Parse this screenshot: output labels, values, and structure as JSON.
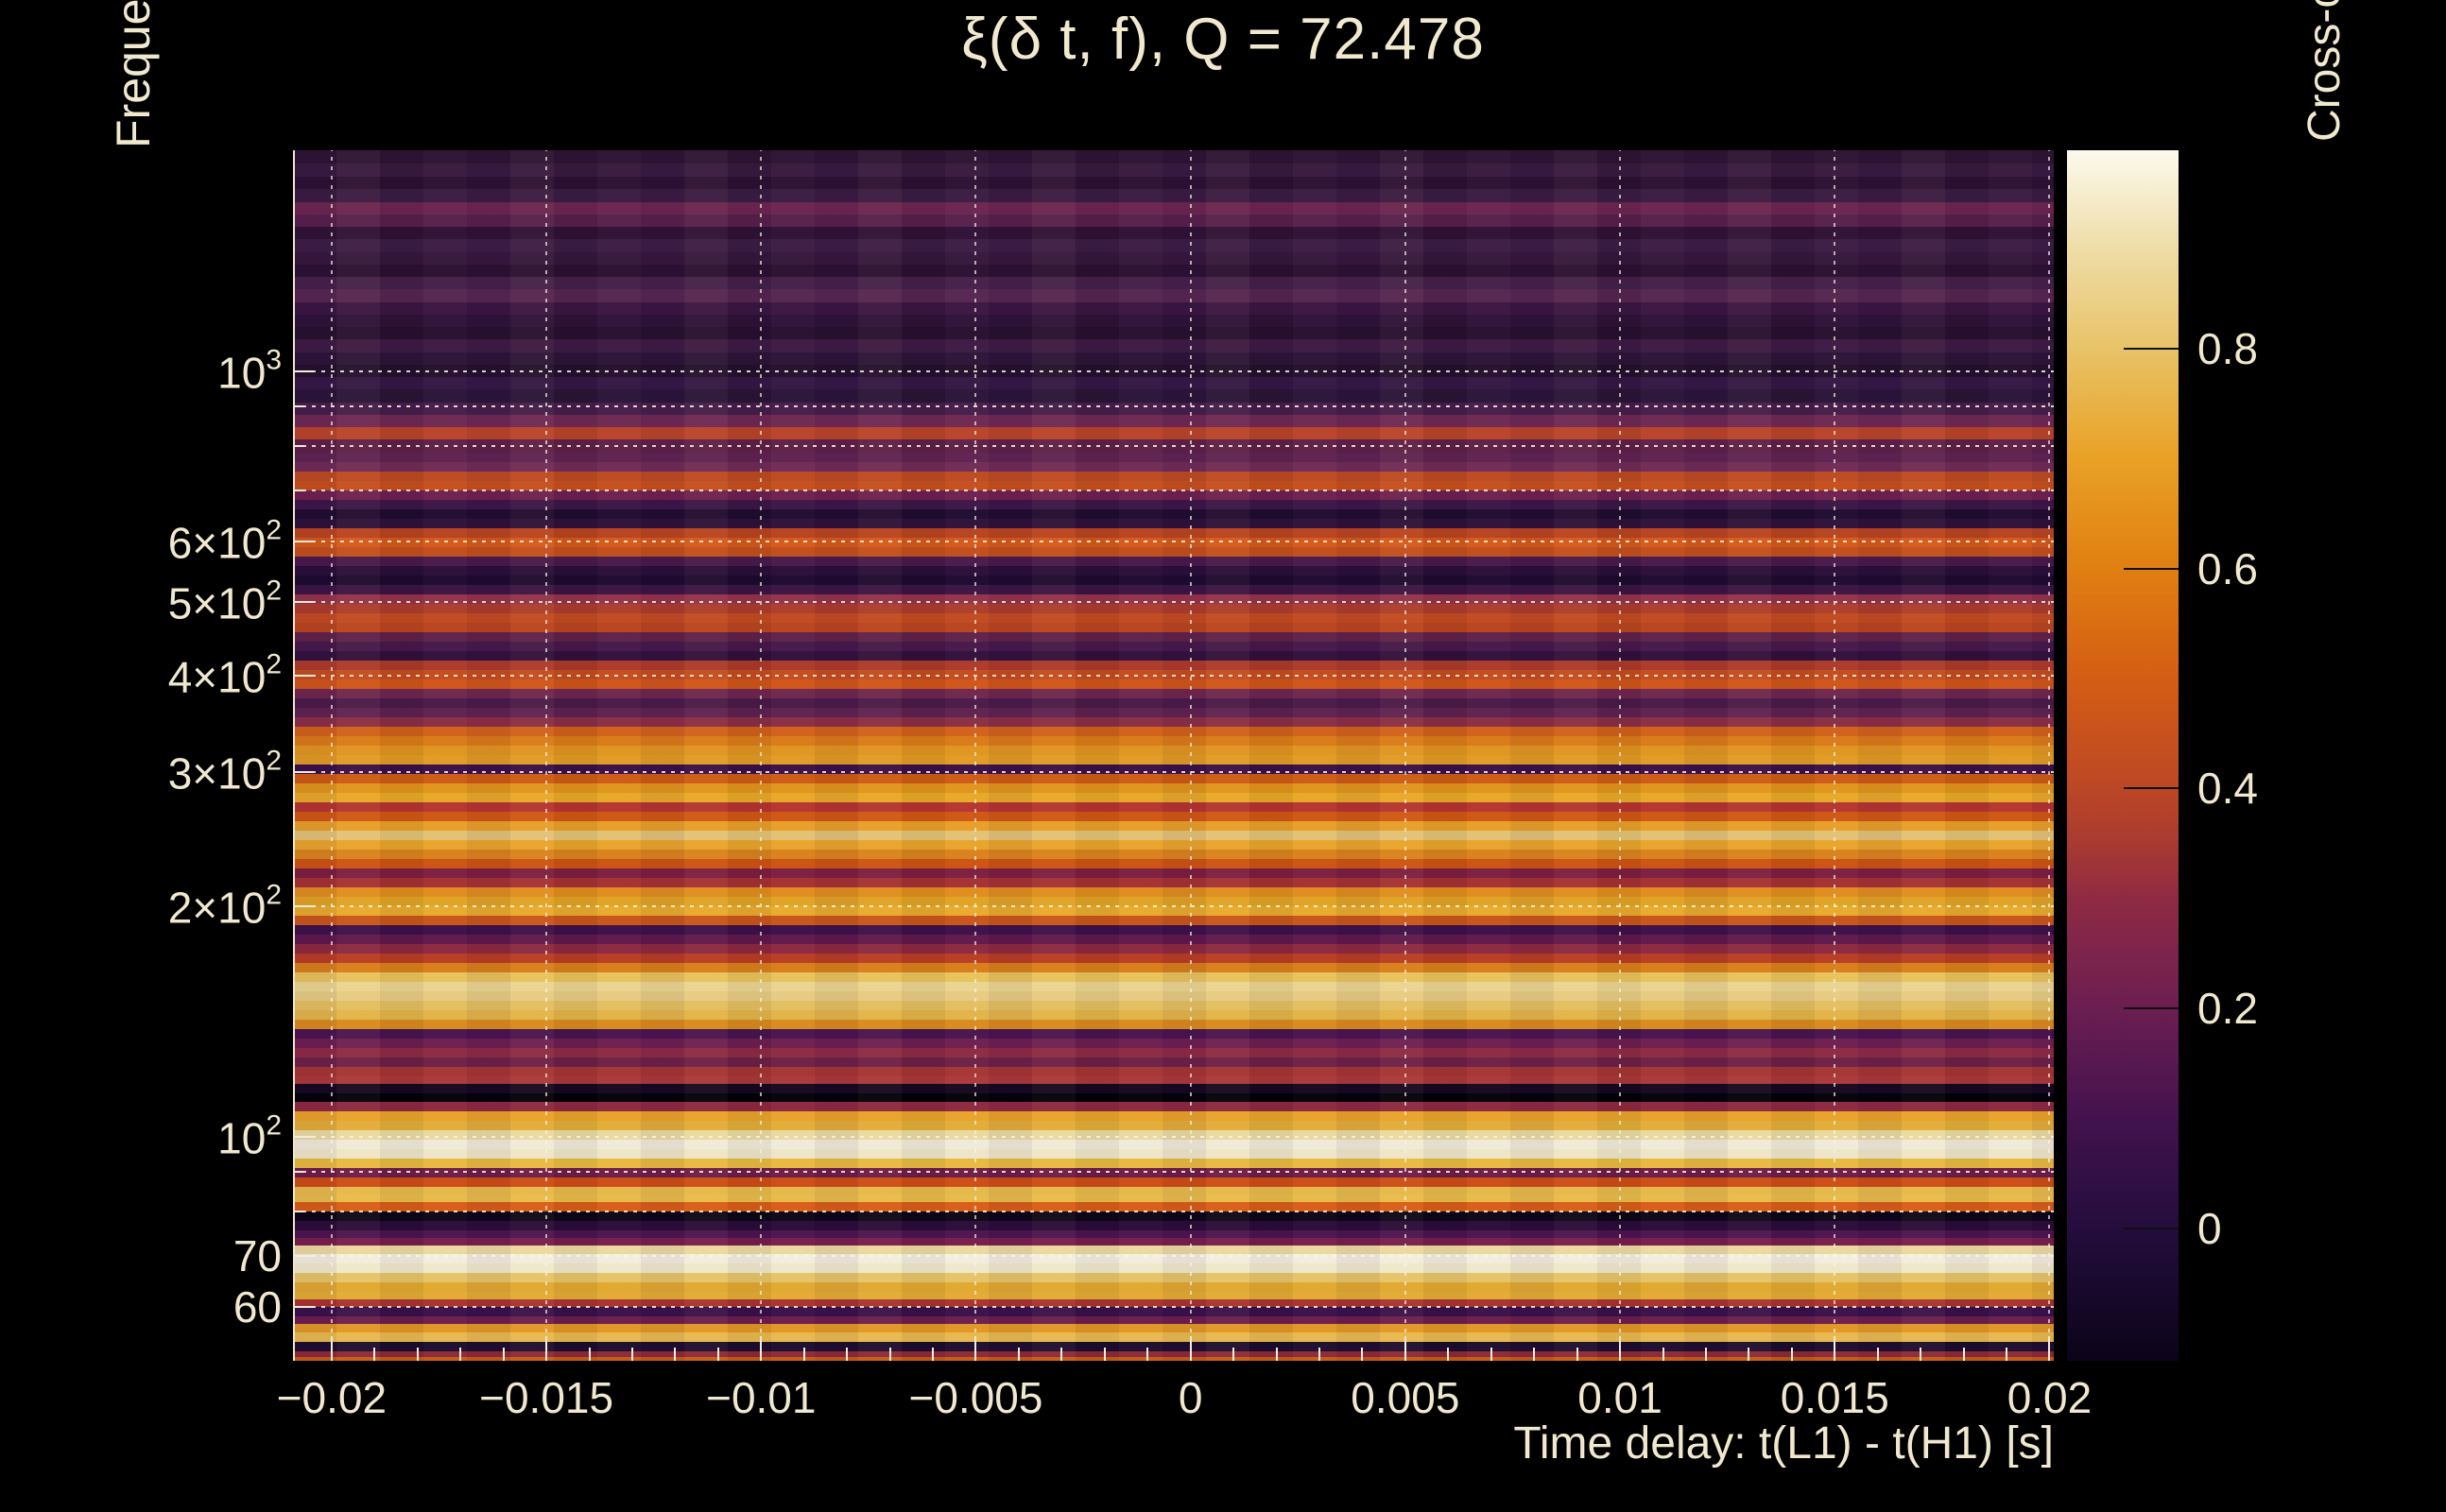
{
  "page": {
    "background": "#000000",
    "text_color": "#f0e8cf"
  },
  "chart_data": {
    "type": "heatmap",
    "title": "ξ(δ t, f), Q = 72.478",
    "xlabel": "Time delay: t(L1) - t(H1) [s]",
    "ylabel": "Frequency [Hz]",
    "colorbar_label": "Cross-correlation ξ",
    "description": "Cross-correlation ξ as function of time delay (x, linear, s) and frequency (y, log, Hz). Pattern is horizontal banding: ξ nearly constant in time delay at each frequency.",
    "x_axis": {
      "min": -0.0209,
      "max": 0.0201,
      "minor_step": 0.001,
      "tick_values": [
        -0.02,
        -0.015,
        -0.01,
        -0.005,
        0,
        0.005,
        0.01,
        0.015,
        0.02
      ],
      "tick_labels": [
        "−0.02",
        "−0.015",
        "−0.01",
        "−0.005",
        "0",
        "0.005",
        "0.01",
        "0.015",
        "0.02"
      ]
    },
    "y_axis": {
      "scale": "log",
      "min": 51,
      "max": 1945,
      "labeled_ticks": [
        {
          "f": 1000,
          "base": "10",
          "exp": "3"
        },
        {
          "f": 600,
          "base": "6×10",
          "exp": "2"
        },
        {
          "f": 500,
          "base": "5×10",
          "exp": "2"
        },
        {
          "f": 400,
          "base": "4×10",
          "exp": "2"
        },
        {
          "f": 300,
          "base": "3×10",
          "exp": "2"
        },
        {
          "f": 200,
          "base": "2×10",
          "exp": "2"
        },
        {
          "f": 100,
          "base": "10",
          "exp": "2"
        },
        {
          "f": 70,
          "base": "70",
          "exp": null
        },
        {
          "f": 60,
          "base": "60",
          "exp": null
        }
      ],
      "gridline_freqs": [
        1000,
        900,
        800,
        700,
        600,
        500,
        400,
        300,
        200,
        100,
        90,
        80,
        70,
        60
      ]
    },
    "colorbar": {
      "vmin": -0.12,
      "vmax": 0.98,
      "tick_values": [
        0,
        0.2,
        0.4,
        0.6,
        0.8
      ],
      "tick_labels": [
        "0",
        "0.2",
        "0.4",
        "0.6",
        "0.8"
      ],
      "stops": [
        {
          "v": -0.12,
          "c": "#0b0418"
        },
        {
          "v": 0.0,
          "c": "#240d3d"
        },
        {
          "v": 0.1,
          "c": "#43124e"
        },
        {
          "v": 0.2,
          "c": "#6b1e51"
        },
        {
          "v": 0.3,
          "c": "#8f2a44"
        },
        {
          "v": 0.35,
          "c": "#a83a31"
        },
        {
          "v": 0.4,
          "c": "#bc4726"
        },
        {
          "v": 0.5,
          "c": "#d45d14"
        },
        {
          "v": 0.6,
          "c": "#e07f12"
        },
        {
          "v": 0.7,
          "c": "#e9a125"
        },
        {
          "v": 0.8,
          "c": "#e8c368"
        },
        {
          "v": 0.9,
          "c": "#efe0ae"
        },
        {
          "v": 0.98,
          "c": "#fcfaee"
        }
      ]
    },
    "bands": [
      {
        "h": 14,
        "c": "#2d1434"
      },
      {
        "h": 14,
        "c": "#381a40"
      },
      {
        "h": 13,
        "c": "#2c1133"
      },
      {
        "h": 14,
        "c": "#3a1b42"
      },
      {
        "h": 13,
        "c": "#6b2550"
      },
      {
        "h": 13,
        "c": "#56204c"
      },
      {
        "h": 13,
        "c": "#2e1236"
      },
      {
        "h": 14,
        "c": "#3c1c44"
      },
      {
        "h": 13,
        "c": "#35173d"
      },
      {
        "h": 13,
        "c": "#2b1032"
      },
      {
        "h": 13,
        "c": "#44204a"
      },
      {
        "h": 14,
        "c": "#552550"
      },
      {
        "h": 13,
        "c": "#3a1642"
      },
      {
        "h": 13,
        "c": "#2e1238"
      },
      {
        "h": 13,
        "c": "#271030"
      },
      {
        "h": 14,
        "c": "#3c1a44"
      },
      {
        "h": 13,
        "c": "#2c1438"
      },
      {
        "h": 13,
        "c": "#24102e"
      },
      {
        "h": 13,
        "c": "#341744"
      },
      {
        "h": 14,
        "c": "#2a1438"
      },
      {
        "h": 13,
        "c": "#451d4a"
      },
      {
        "h": 13,
        "c": "#6e2854"
      },
      {
        "h": 13,
        "c": "#b8432a"
      },
      {
        "h": 14,
        "c": "#5e2048"
      },
      {
        "h": 10,
        "c": "#5e2350"
      },
      {
        "h": 10,
        "c": "#6f2b57"
      },
      {
        "h": 10,
        "c": "#bc4a22"
      },
      {
        "h": 10,
        "c": "#c54e1e"
      },
      {
        "h": 10,
        "c": "#6e2050"
      },
      {
        "h": 10,
        "c": "#3c1646"
      },
      {
        "h": 10,
        "c": "#200c31"
      },
      {
        "h": 10,
        "c": "#2e1139"
      },
      {
        "h": 10,
        "c": "#b8431f"
      },
      {
        "h": 10,
        "c": "#d4591a"
      },
      {
        "h": 10,
        "c": "#c24e1c"
      },
      {
        "h": 10,
        "c": "#48194b"
      },
      {
        "h": 10,
        "c": "#2a0e38"
      },
      {
        "h": 10,
        "c": "#1d0a2f"
      },
      {
        "h": 10,
        "c": "#3b1443"
      },
      {
        "h": 10,
        "c": "#93324a"
      },
      {
        "h": 10,
        "c": "#ab3c2e"
      },
      {
        "h": 10,
        "c": "#c24a20"
      },
      {
        "h": 10,
        "c": "#b8441f"
      },
      {
        "h": 10,
        "c": "#5f2149"
      },
      {
        "h": 10,
        "c": "#451849"
      },
      {
        "h": 10,
        "c": "#31103d"
      },
      {
        "h": 10,
        "c": "#ab3a2a"
      },
      {
        "h": 10,
        "c": "#c44b1e"
      },
      {
        "h": 10,
        "c": "#cf541a"
      },
      {
        "h": 10,
        "c": "#6e2650"
      },
      {
        "h": 10,
        "c": "#4a1a48"
      },
      {
        "h": 10,
        "c": "#5e2150"
      },
      {
        "h": 10,
        "c": "#8a2e44"
      },
      {
        "h": 10,
        "c": "#d0601a"
      },
      {
        "h": 10,
        "c": "#da7a18"
      },
      {
        "h": 10,
        "c": "#e0941f"
      },
      {
        "h": 10,
        "c": "#e09b24"
      },
      {
        "h": 10,
        "c": "#3a1048"
      },
      {
        "h": 10,
        "c": "#cc5a14"
      },
      {
        "h": 10,
        "c": "#e0941c"
      },
      {
        "h": 10,
        "c": "#e8a828"
      },
      {
        "h": 10,
        "c": "#b43430"
      },
      {
        "h": 10,
        "c": "#d05614"
      },
      {
        "h": 10,
        "c": "#e89e28"
      },
      {
        "h": 10,
        "c": "#e2c275"
      },
      {
        "h": 10,
        "c": "#e8a42c"
      },
      {
        "h": 10,
        "c": "#d8821c"
      },
      {
        "h": 10,
        "c": "#cc5212"
      },
      {
        "h": 10,
        "c": "#7c1e40"
      },
      {
        "h": 10,
        "c": "#a43034"
      },
      {
        "h": 10,
        "c": "#e08c1e"
      },
      {
        "h": 10,
        "c": "#e0a224"
      },
      {
        "h": 10,
        "c": "#e8aa2c"
      },
      {
        "h": 10,
        "c": "#c8541a"
      },
      {
        "h": 10,
        "c": "#3c1048"
      },
      {
        "h": 10,
        "c": "#60184c"
      },
      {
        "h": 10,
        "c": "#8c2840"
      },
      {
        "h": 10,
        "c": "#b83c24"
      },
      {
        "h": 10,
        "c": "#d87e1a"
      },
      {
        "h": 10,
        "c": "#e8c25c"
      },
      {
        "h": 10,
        "c": "#ead490"
      },
      {
        "h": 10,
        "c": "#e6cb82"
      },
      {
        "h": 10,
        "c": "#e4bf60"
      },
      {
        "h": 10,
        "c": "#e2b44a"
      },
      {
        "h": 10,
        "c": "#d88a1c"
      },
      {
        "h": 10,
        "c": "#481450"
      },
      {
        "h": 10,
        "c": "#6e1e50"
      },
      {
        "h": 10,
        "c": "#8c2a44"
      },
      {
        "h": 10,
        "c": "#6c2048"
      },
      {
        "h": 10,
        "c": "#a43434"
      },
      {
        "h": 8,
        "c": "#aa3838"
      },
      {
        "h": 10,
        "c": "#150822"
      },
      {
        "h": 9,
        "c": "#030108"
      },
      {
        "h": 10,
        "c": "#8c2840"
      },
      {
        "h": 10,
        "c": "#e8a22a"
      },
      {
        "h": 10,
        "c": "#e2ac38"
      },
      {
        "h": 10,
        "c": "#ead9a0"
      },
      {
        "h": 10,
        "c": "#f0ead8"
      },
      {
        "h": 10,
        "c": "#eee6c8"
      },
      {
        "h": 10,
        "c": "#e8b93f"
      },
      {
        "h": 10,
        "c": "#6e1c48"
      },
      {
        "h": 10,
        "c": "#cc4c16"
      },
      {
        "h": 8,
        "c": "#e6b84a"
      },
      {
        "h": 8,
        "c": "#e8bb4a"
      },
      {
        "h": 10,
        "c": "#d85c16"
      },
      {
        "h": 10,
        "c": "#0c0618"
      },
      {
        "h": 10,
        "c": "#2a0c38"
      },
      {
        "h": 8,
        "c": "#4c1450"
      },
      {
        "h": 8,
        "c": "#761e4c"
      },
      {
        "h": 9,
        "c": "#ecd8a0"
      },
      {
        "h": 10,
        "c": "#f2eede"
      },
      {
        "h": 10,
        "c": "#f0e8cc"
      },
      {
        "h": 10,
        "c": "#e6c468"
      },
      {
        "h": 10,
        "c": "#e0a830"
      },
      {
        "h": 8,
        "c": "#e2ab34"
      },
      {
        "h": 8,
        "c": "#a83230"
      },
      {
        "h": 10,
        "c": "#38114a"
      },
      {
        "h": 8,
        "c": "#6c1e4e"
      },
      {
        "h": 9,
        "c": "#e29626"
      },
      {
        "h": 10,
        "c": "#e8b84e"
      },
      {
        "h": 10,
        "c": "#1e0d2e"
      },
      {
        "h": 6,
        "c": "#8c2a38"
      },
      {
        "h": 4,
        "c": "#c85a14"
      }
    ]
  }
}
